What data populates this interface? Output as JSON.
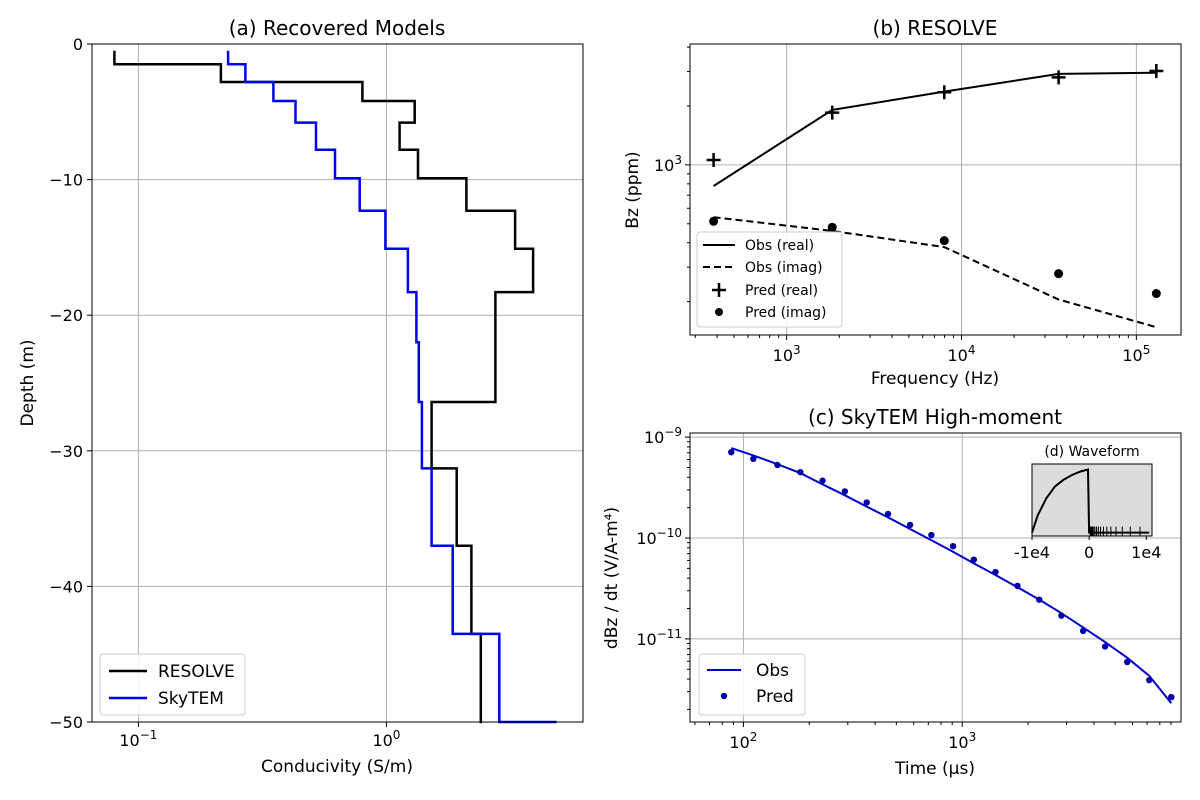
{
  "chart_data": [
    {
      "type": "line",
      "panel": "a",
      "title": "(a) Recovered Models",
      "xlabel": "Conducivity (S/m)",
      "ylabel": "Depth (m)",
      "xscale": "log",
      "xlim": [
        0.065,
        6.2
      ],
      "ylim": [
        -50,
        0
      ],
      "xticks": [
        {
          "value": 0.1,
          "label": "10",
          "exp": "−1"
        },
        {
          "value": 1,
          "label": "10",
          "exp": "0"
        }
      ],
      "yticks": [
        {
          "value": 0,
          "label": "0"
        },
        {
          "value": -10,
          "label": "−10"
        },
        {
          "value": -20,
          "label": "−20"
        },
        {
          "value": -30,
          "label": "−30"
        },
        {
          "value": -40,
          "label": "−40"
        },
        {
          "value": -50,
          "label": "−50"
        }
      ],
      "grid": true,
      "legend": "lower left",
      "series": [
        {
          "name": "RESOLVE",
          "color": "#000000",
          "steps": [
            {
              "value": 0.08,
              "top": -0.5,
              "bottom": -1.5
            },
            {
              "value": 0.215,
              "top": -1.5,
              "bottom": -2.8
            },
            {
              "value": 0.8,
              "top": -2.8,
              "bottom": -4.2
            },
            {
              "value": 1.3,
              "top": -4.2,
              "bottom": -5.8
            },
            {
              "value": 1.13,
              "top": -5.8,
              "bottom": -7.8
            },
            {
              "value": 1.34,
              "top": -7.8,
              "bottom": -9.9
            },
            {
              "value": 2.1,
              "top": -9.9,
              "bottom": -12.3
            },
            {
              "value": 3.3,
              "top": -12.3,
              "bottom": -15.1
            },
            {
              "value": 3.9,
              "top": -15.1,
              "bottom": -18.3
            },
            {
              "value": 2.75,
              "top": -18.3,
              "bottom": -26.4
            },
            {
              "value": 1.52,
              "top": -26.4,
              "bottom": -31.3
            },
            {
              "value": 1.92,
              "top": -31.3,
              "bottom": -37.0
            },
            {
              "value": 2.2,
              "top": -37.0,
              "bottom": -43.5
            },
            {
              "value": 2.4,
              "top": -43.5,
              "bottom": -50.0
            },
            {
              "value": 2.43,
              "top": -50.0,
              "bottom": -50.0
            }
          ]
        },
        {
          "name": "SkyTEM",
          "color": "#0000ee",
          "steps": [
            {
              "value": 0.23,
              "top": -0.5,
              "bottom": -1.5
            },
            {
              "value": 0.27,
              "top": -1.5,
              "bottom": -2.8
            },
            {
              "value": 0.35,
              "top": -2.8,
              "bottom": -4.2
            },
            {
              "value": 0.43,
              "top": -4.2,
              "bottom": -5.8
            },
            {
              "value": 0.52,
              "top": -5.8,
              "bottom": -7.8
            },
            {
              "value": 0.62,
              "top": -7.8,
              "bottom": -9.9
            },
            {
              "value": 0.78,
              "top": -9.9,
              "bottom": -12.3
            },
            {
              "value": 0.99,
              "top": -12.3,
              "bottom": -15.1
            },
            {
              "value": 1.22,
              "top": -15.1,
              "bottom": -18.3
            },
            {
              "value": 1.32,
              "top": -18.3,
              "bottom": -22.0
            },
            {
              "value": 1.35,
              "top": -22.0,
              "bottom": -26.4
            },
            {
              "value": 1.39,
              "top": -26.4,
              "bottom": -31.3
            },
            {
              "value": 1.52,
              "top": -31.3,
              "bottom": -37.0
            },
            {
              "value": 1.85,
              "top": -37.0,
              "bottom": -43.5
            },
            {
              "value": 2.85,
              "top": -43.5,
              "bottom": -50.0
            },
            {
              "value": 4.85,
              "top": -50.0,
              "bottom": -50.0
            }
          ]
        }
      ]
    },
    {
      "type": "line",
      "panel": "b",
      "title": "(b) RESOLVE",
      "xlabel": "Frequency (Hz)",
      "ylabel": "Bz (ppm)",
      "xscale": "log",
      "yscale": "log",
      "xlim": [
        280,
        180000
      ],
      "ylim": [
        135,
        4150
      ],
      "xticks": [
        {
          "value": 1000,
          "label": "10",
          "exp": "3"
        },
        {
          "value": 10000,
          "label": "10",
          "exp": "4"
        },
        {
          "value": 100000,
          "label": "10",
          "exp": "5"
        }
      ],
      "yticks": [
        {
          "value": 1000,
          "label": "10",
          "exp": "3"
        }
      ],
      "grid": true,
      "legend": "lower left",
      "x": [
        382,
        1822,
        7970,
        35920,
        130100
      ],
      "series": [
        {
          "name": "Obs (real)",
          "style": "solid",
          "values": [
            780,
            1910,
            2370,
            2920,
            2960
          ]
        },
        {
          "name": "Obs (imag)",
          "style": "dashed",
          "values": [
            540,
            460,
            380,
            205,
            148
          ]
        },
        {
          "name": "Pred (real)",
          "style": "plus",
          "values": [
            1060,
            1850,
            2350,
            2800,
            3020
          ]
        },
        {
          "name": "Pred (imag)",
          "style": "dot",
          "values": [
            515,
            480,
            410,
            278,
            220
          ]
        }
      ]
    },
    {
      "type": "line",
      "panel": "c",
      "title": "(c) SkyTEM High-moment",
      "xlabel": "Time (μs)",
      "ylabel": "dBz / dt (V/A-m⁴)",
      "xscale": "log",
      "yscale": "log",
      "xlim": [
        57,
        10000
      ],
      "ylim": [
        1.5e-12,
        1.1e-09
      ],
      "xticks": [
        {
          "value": 100,
          "label": "10",
          "exp": "2"
        },
        {
          "value": 1000,
          "label": "10",
          "exp": "3"
        }
      ],
      "yticks": [
        {
          "value": 1e-09,
          "label": "10",
          "exp": "−9"
        },
        {
          "value": 1e-10,
          "label": "10",
          "exp": "−10"
        },
        {
          "value": 1e-11,
          "label": "10",
          "exp": "−11"
        }
      ],
      "grid": true,
      "legend": "lower left",
      "x": [
        88,
        111,
        143,
        182,
        230,
        291,
        366,
        458,
        578,
        723,
        908,
        1130,
        1420,
        1790,
        2250,
        2840,
        3570,
        4500,
        5680,
        7160,
        9030
      ],
      "series": [
        {
          "name": "Obs",
          "style": "line",
          "color": "#0000cc",
          "values": [
            7.8e-10,
            6.6e-10,
            5.4e-10,
            4.4e-10,
            3.4e-10,
            2.65e-10,
            2.05e-10,
            1.6e-10,
            1.23e-10,
            9.5e-11,
            7.3e-11,
            5.6e-11,
            4.3e-11,
            3.25e-11,
            2.45e-11,
            1.8e-11,
            1.3e-11,
            9.3e-12,
            6.5e-12,
            4.3e-12,
            2.3e-12
          ]
        },
        {
          "name": "Pred",
          "style": "dot",
          "color": "#0000aa",
          "values": [
            7.1e-10,
            6.1e-10,
            5.3e-10,
            4.5e-10,
            3.7e-10,
            2.9e-10,
            2.25e-10,
            1.73e-10,
            1.35e-10,
            1.07e-10,
            8.3e-11,
            6.1e-11,
            4.6e-11,
            3.35e-11,
            2.45e-11,
            1.7e-11,
            1.2e-11,
            8.4e-12,
            5.9e-12,
            3.9e-12,
            2.65e-12
          ]
        }
      ]
    },
    {
      "type": "line",
      "panel": "d",
      "title": "(d) Waveform",
      "xlim": [
        -10000,
        11000
      ],
      "ylim": [
        0,
        1.05
      ],
      "xticks": [
        {
          "value": -10000,
          "label": "-1e4"
        },
        {
          "value": 0,
          "label": "0"
        },
        {
          "value": 10000,
          "label": "1e4"
        }
      ],
      "background": "#dcdcdc",
      "x": [
        -10000,
        -9000,
        -7500,
        -6000,
        -4500,
        -3000,
        -1500,
        -200,
        0,
        300,
        10500
      ],
      "values": [
        0.05,
        0.3,
        0.55,
        0.72,
        0.82,
        0.89,
        0.94,
        0.97,
        0.05,
        0.05,
        0.05
      ],
      "gate_times": [
        200,
        300,
        400,
        500,
        600,
        800,
        1000,
        1300,
        1600,
        2000,
        2500,
        3100,
        3800,
        4700,
        5800,
        7200,
        8900
      ]
    }
  ]
}
